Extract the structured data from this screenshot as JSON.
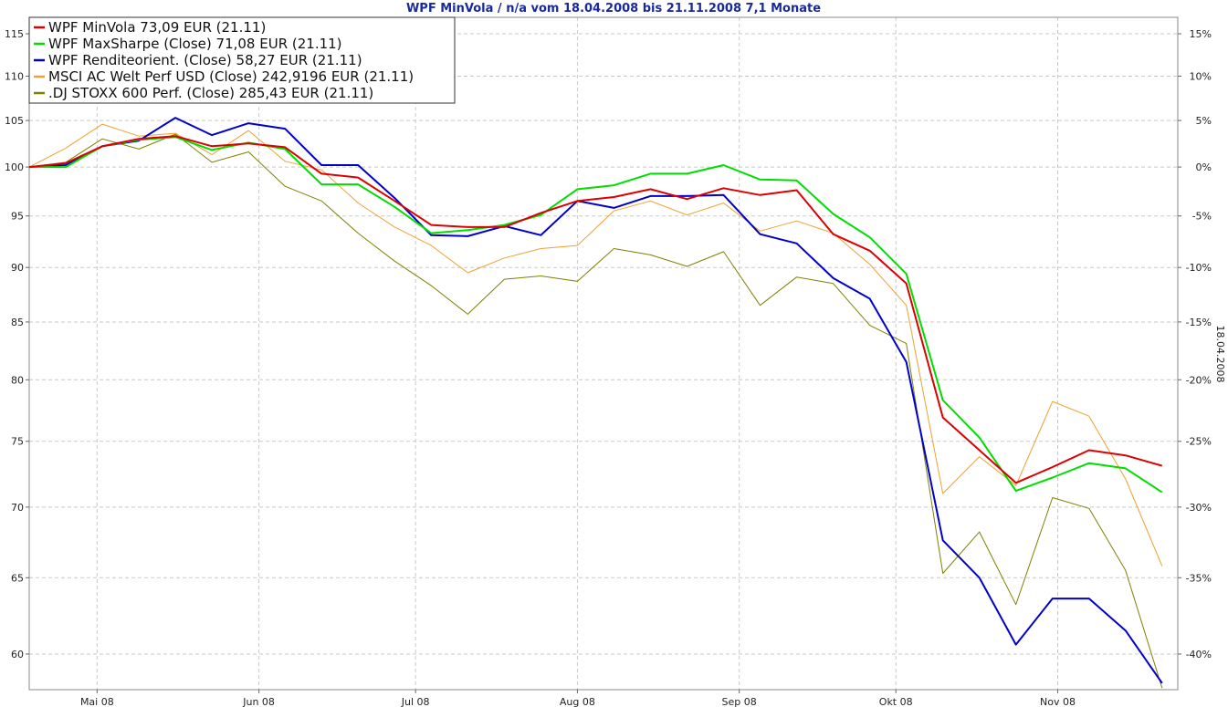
{
  "chart_data": {
    "type": "line",
    "title": "WPF MinVola / n/a vom 18.04.2008 bis 21.11.2008 7,1 Monate",
    "side_label": "18.04.2008",
    "y_scale": "log",
    "ylim": [
      57.8,
      117
    ],
    "left_ticks": [
      {
        "value": 60,
        "label": "60"
      },
      {
        "value": 65,
        "label": "65"
      },
      {
        "value": 70,
        "label": "70"
      },
      {
        "value": 75,
        "label": "75"
      },
      {
        "value": 80,
        "label": "80"
      },
      {
        "value": 85,
        "label": "85"
      },
      {
        "value": 90,
        "label": "90"
      },
      {
        "value": 95,
        "label": "95"
      },
      {
        "value": 100,
        "label": "100"
      },
      {
        "value": 105,
        "label": "105"
      },
      {
        "value": 110,
        "label": "110"
      },
      {
        "value": 115,
        "label": "115"
      }
    ],
    "right_ticks": [
      {
        "value": 60,
        "label": "-40%"
      },
      {
        "value": 65,
        "label": "-35%"
      },
      {
        "value": 70,
        "label": "-30%"
      },
      {
        "value": 75,
        "label": "-25%"
      },
      {
        "value": 80,
        "label": "-20%"
      },
      {
        "value": 85,
        "label": "-15%"
      },
      {
        "value": 90,
        "label": "-10%"
      },
      {
        "value": 95,
        "label": "-5%"
      },
      {
        "value": 100,
        "label": "0%"
      },
      {
        "value": 105,
        "label": "5%"
      },
      {
        "value": 110,
        "label": "10%"
      },
      {
        "value": 115,
        "label": "15%"
      }
    ],
    "x_ticks": [
      {
        "date": "2008-05-01",
        "label": "Mai 08"
      },
      {
        "date": "2008-06-01",
        "label": "Jun 08"
      },
      {
        "date": "2008-07-01",
        "label": "Jul 08"
      },
      {
        "date": "2008-08-01",
        "label": "Aug 08"
      },
      {
        "date": "2008-09-01",
        "label": "Sep 08"
      },
      {
        "date": "2008-10-01",
        "label": "Okt 08"
      },
      {
        "date": "2008-11-01",
        "label": "Nov 08"
      }
    ],
    "xlim": [
      "2008-04-18",
      "2008-11-24"
    ],
    "x": [
      "2008-04-18",
      "2008-04-25",
      "2008-05-02",
      "2008-05-09",
      "2008-05-16",
      "2008-05-23",
      "2008-05-30",
      "2008-06-06",
      "2008-06-13",
      "2008-06-20",
      "2008-06-27",
      "2008-07-04",
      "2008-07-11",
      "2008-07-18",
      "2008-07-25",
      "2008-08-01",
      "2008-08-08",
      "2008-08-15",
      "2008-08-22",
      "2008-08-29",
      "2008-09-05",
      "2008-09-12",
      "2008-09-19",
      "2008-09-26",
      "2008-10-03",
      "2008-10-10",
      "2008-10-17",
      "2008-10-24",
      "2008-10-31",
      "2008-11-07",
      "2008-11-14",
      "2008-11-21"
    ],
    "series": [
      {
        "name": "MSCI AC Welt Perf USD (Close) 242,9196 EUR (21.11)",
        "color": "#f0a030",
        "width": 1,
        "values": [
          100,
          102,
          104.6,
          103.3,
          103.6,
          101.3,
          103.9,
          100.6,
          99.7,
          96.3,
          93.9,
          92.1,
          89.5,
          90.9,
          91.8,
          92.1,
          95.5,
          96.5,
          95.1,
          96.3,
          93.5,
          94.5,
          93.3,
          90.3,
          86.5,
          71,
          73.8,
          71.6,
          78.2,
          77,
          72.1,
          65.8
        ]
      },
      {
        "name": ".DJ STOXX 600 Perf. (Close) 285,43 EUR (21.11)",
        "color": "#808000",
        "width": 1,
        "values": [
          100,
          100.5,
          103,
          101.9,
          103.5,
          100.5,
          101.6,
          98,
          96.5,
          93.3,
          90.6,
          88.3,
          85.7,
          88.9,
          89.2,
          88.7,
          91.8,
          91.2,
          90.1,
          91.5,
          86.5,
          89.1,
          88.5,
          84.7,
          83.1,
          65.3,
          68.2,
          63.2,
          70.7,
          69.9,
          65.5,
          57.9
        ]
      },
      {
        "name": "WPF Renditeorient. (Close) 58,27 EUR (21.11)",
        "color": "#0000cc",
        "width": 2,
        "values": [
          100,
          100.2,
          102.2,
          102.8,
          105.3,
          103.4,
          104.7,
          104.1,
          100.2,
          100.2,
          96.8,
          93.1,
          93,
          94,
          93.1,
          96.5,
          95.8,
          97,
          97,
          97.1,
          93.2,
          92.3,
          89,
          87.1,
          81.5,
          67.6,
          65,
          60.6,
          63.6,
          63.6,
          61.5,
          58.2
        ]
      },
      {
        "name": "WPF MaxSharpe (Close) 71,08 EUR (21.11)",
        "color": "#00dd00",
        "width": 2,
        "values": [
          100,
          100,
          102.2,
          102.9,
          103.2,
          101.8,
          102.6,
          101.9,
          98.2,
          98.2,
          95.9,
          93.3,
          93.6,
          94.1,
          95.1,
          97.7,
          98.1,
          99.3,
          99.3,
          100.2,
          98.7,
          98.6,
          95.2,
          92.9,
          89.4,
          78.3,
          75.3,
          71.2,
          72.2,
          73.3,
          72.9,
          71.1
        ]
      },
      {
        "name": "WPF MinVola 73,09 EUR (21.11)",
        "color": "#dd0000",
        "width": 2,
        "values": [
          100,
          100.4,
          102.2,
          103,
          103.3,
          102.2,
          102.5,
          102.1,
          99.3,
          98.9,
          96.5,
          94.1,
          93.9,
          93.9,
          95.3,
          96.5,
          96.9,
          97.7,
          96.7,
          97.8,
          97.1,
          97.6,
          93.2,
          91.6,
          88.5,
          76.9,
          74.3,
          71.8,
          73,
          74.3,
          73.9,
          73.1
        ]
      }
    ],
    "legend": {
      "placement": "top-left",
      "entries": [
        {
          "label": "WPF MinVola 73,09 EUR (21.11)",
          "color": "#dd0000"
        },
        {
          "label": "WPF MaxSharpe (Close) 71,08 EUR (21.11)",
          "color": "#00dd00"
        },
        {
          "label": "WPF Renditeorient. (Close) 58,27 EUR (21.11)",
          "color": "#0000cc"
        },
        {
          "label": "MSCI AC Welt Perf USD (Close) 242,9196 EUR (21.11)",
          "color": "#f0a030"
        },
        {
          "label": ".DJ STOXX 600 Perf. (Close) 285,43 EUR (21.11)",
          "color": "#808000"
        }
      ]
    },
    "grid": true
  }
}
